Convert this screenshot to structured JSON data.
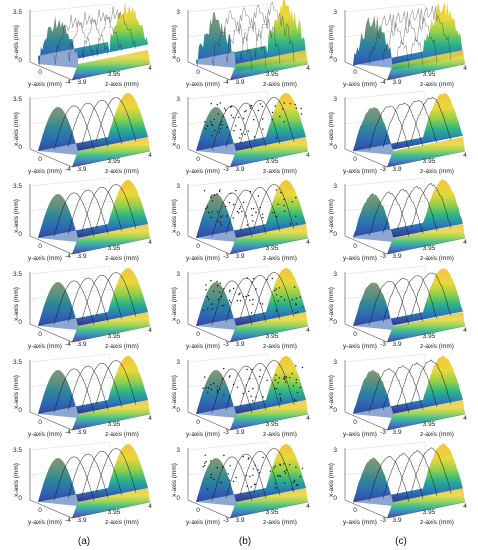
{
  "figure": {
    "column_labels": [
      "(a)",
      "(b)",
      "(c)"
    ],
    "rows": 6,
    "columns": 3
  },
  "chart_data": {
    "type": "surface3d-grid",
    "colormap": [
      "#3b1e8c",
      "#2c72b8",
      "#22a88a",
      "#79cc4d",
      "#f0d13c",
      "#f4b63c"
    ],
    "axes": {
      "xlabel": "z-axis (mm)",
      "ylabel": "y-axis (mm)",
      "zlabel": "x-axis (mm)",
      "z_ticks_a": [
        "0",
        "3.5"
      ],
      "z_ticks_bc": [
        "0",
        "3"
      ],
      "y_ticks_row1": [
        "-4",
        "0",
        "4"
      ],
      "y_ticks_a": [
        "4",
        "0",
        "-4"
      ],
      "y_ticks_bc": [
        "-3",
        "0",
        "3"
      ],
      "x_ticks": [
        "3.9",
        "3.95",
        "4"
      ]
    },
    "panels": [
      {
        "col": 0,
        "row": 0,
        "noise": 0.9,
        "dots": false,
        "ztop": "3.5",
        "ymid": "0",
        "yneg": "-4",
        "ypos": "4"
      },
      {
        "col": 1,
        "row": 0,
        "noise": 1.0,
        "dots": false,
        "ztop": "3",
        "ymid": "0",
        "yneg": "-4",
        "ypos": "4"
      },
      {
        "col": 2,
        "row": 0,
        "noise": 1.0,
        "dots": false,
        "ztop": "3",
        "ymid": "0",
        "yneg": "-4",
        "ypos": "4"
      },
      {
        "col": 0,
        "row": 1,
        "noise": 0,
        "dots": false,
        "ztop": "3.5",
        "ymid": "0",
        "yneg": "-4",
        "ypos": "4"
      },
      {
        "col": 1,
        "row": 1,
        "noise": 0,
        "dots": true,
        "ztop": "3",
        "ymid": "0",
        "yneg": "-3",
        "ypos": "3"
      },
      {
        "col": 2,
        "row": 1,
        "noise": 0.15,
        "dots": false,
        "ztop": "3",
        "ymid": "0",
        "yneg": "-3",
        "ypos": "3"
      },
      {
        "col": 0,
        "row": 2,
        "noise": 0,
        "dots": false,
        "ztop": "3.5",
        "ymid": "0",
        "yneg": "-4",
        "ypos": "4"
      },
      {
        "col": 1,
        "row": 2,
        "noise": 0,
        "dots": true,
        "ztop": "3",
        "ymid": "0",
        "yneg": "-3",
        "ypos": "3"
      },
      {
        "col": 2,
        "row": 2,
        "noise": 0.15,
        "dots": false,
        "ztop": "3",
        "ymid": "0",
        "yneg": "-3",
        "ypos": "3"
      },
      {
        "col": 0,
        "row": 3,
        "noise": 0,
        "dots": false,
        "ztop": "3.5",
        "ymid": "0",
        "yneg": "-4",
        "ypos": "4"
      },
      {
        "col": 1,
        "row": 3,
        "noise": 0,
        "dots": true,
        "ztop": "3",
        "ymid": "0",
        "yneg": "-3",
        "ypos": "3"
      },
      {
        "col": 2,
        "row": 3,
        "noise": 0.1,
        "dots": false,
        "ztop": "3",
        "ymid": "0",
        "yneg": "-3",
        "ypos": "3"
      },
      {
        "col": 0,
        "row": 4,
        "noise": 0,
        "dots": false,
        "ztop": "3.5",
        "ymid": "0",
        "yneg": "-4",
        "ypos": "4"
      },
      {
        "col": 1,
        "row": 4,
        "noise": 0,
        "dots": true,
        "ztop": "3",
        "ymid": "0",
        "yneg": "-3",
        "ypos": "3"
      },
      {
        "col": 2,
        "row": 4,
        "noise": 0.1,
        "dots": false,
        "ztop": "3",
        "ymid": "0",
        "yneg": "-3",
        "ypos": "3"
      },
      {
        "col": 0,
        "row": 5,
        "noise": 0,
        "dots": false,
        "ztop": "3.5",
        "ymid": "0",
        "yneg": "-4",
        "ypos": "4"
      },
      {
        "col": 1,
        "row": 5,
        "noise": 0,
        "dots": true,
        "ztop": "3",
        "ymid": "0",
        "yneg": "-3",
        "ypos": "3"
      },
      {
        "col": 2,
        "row": 5,
        "noise": 0.1,
        "dots": false,
        "ztop": "3",
        "ymid": "0",
        "yneg": "-3",
        "ypos": "3"
      }
    ]
  }
}
